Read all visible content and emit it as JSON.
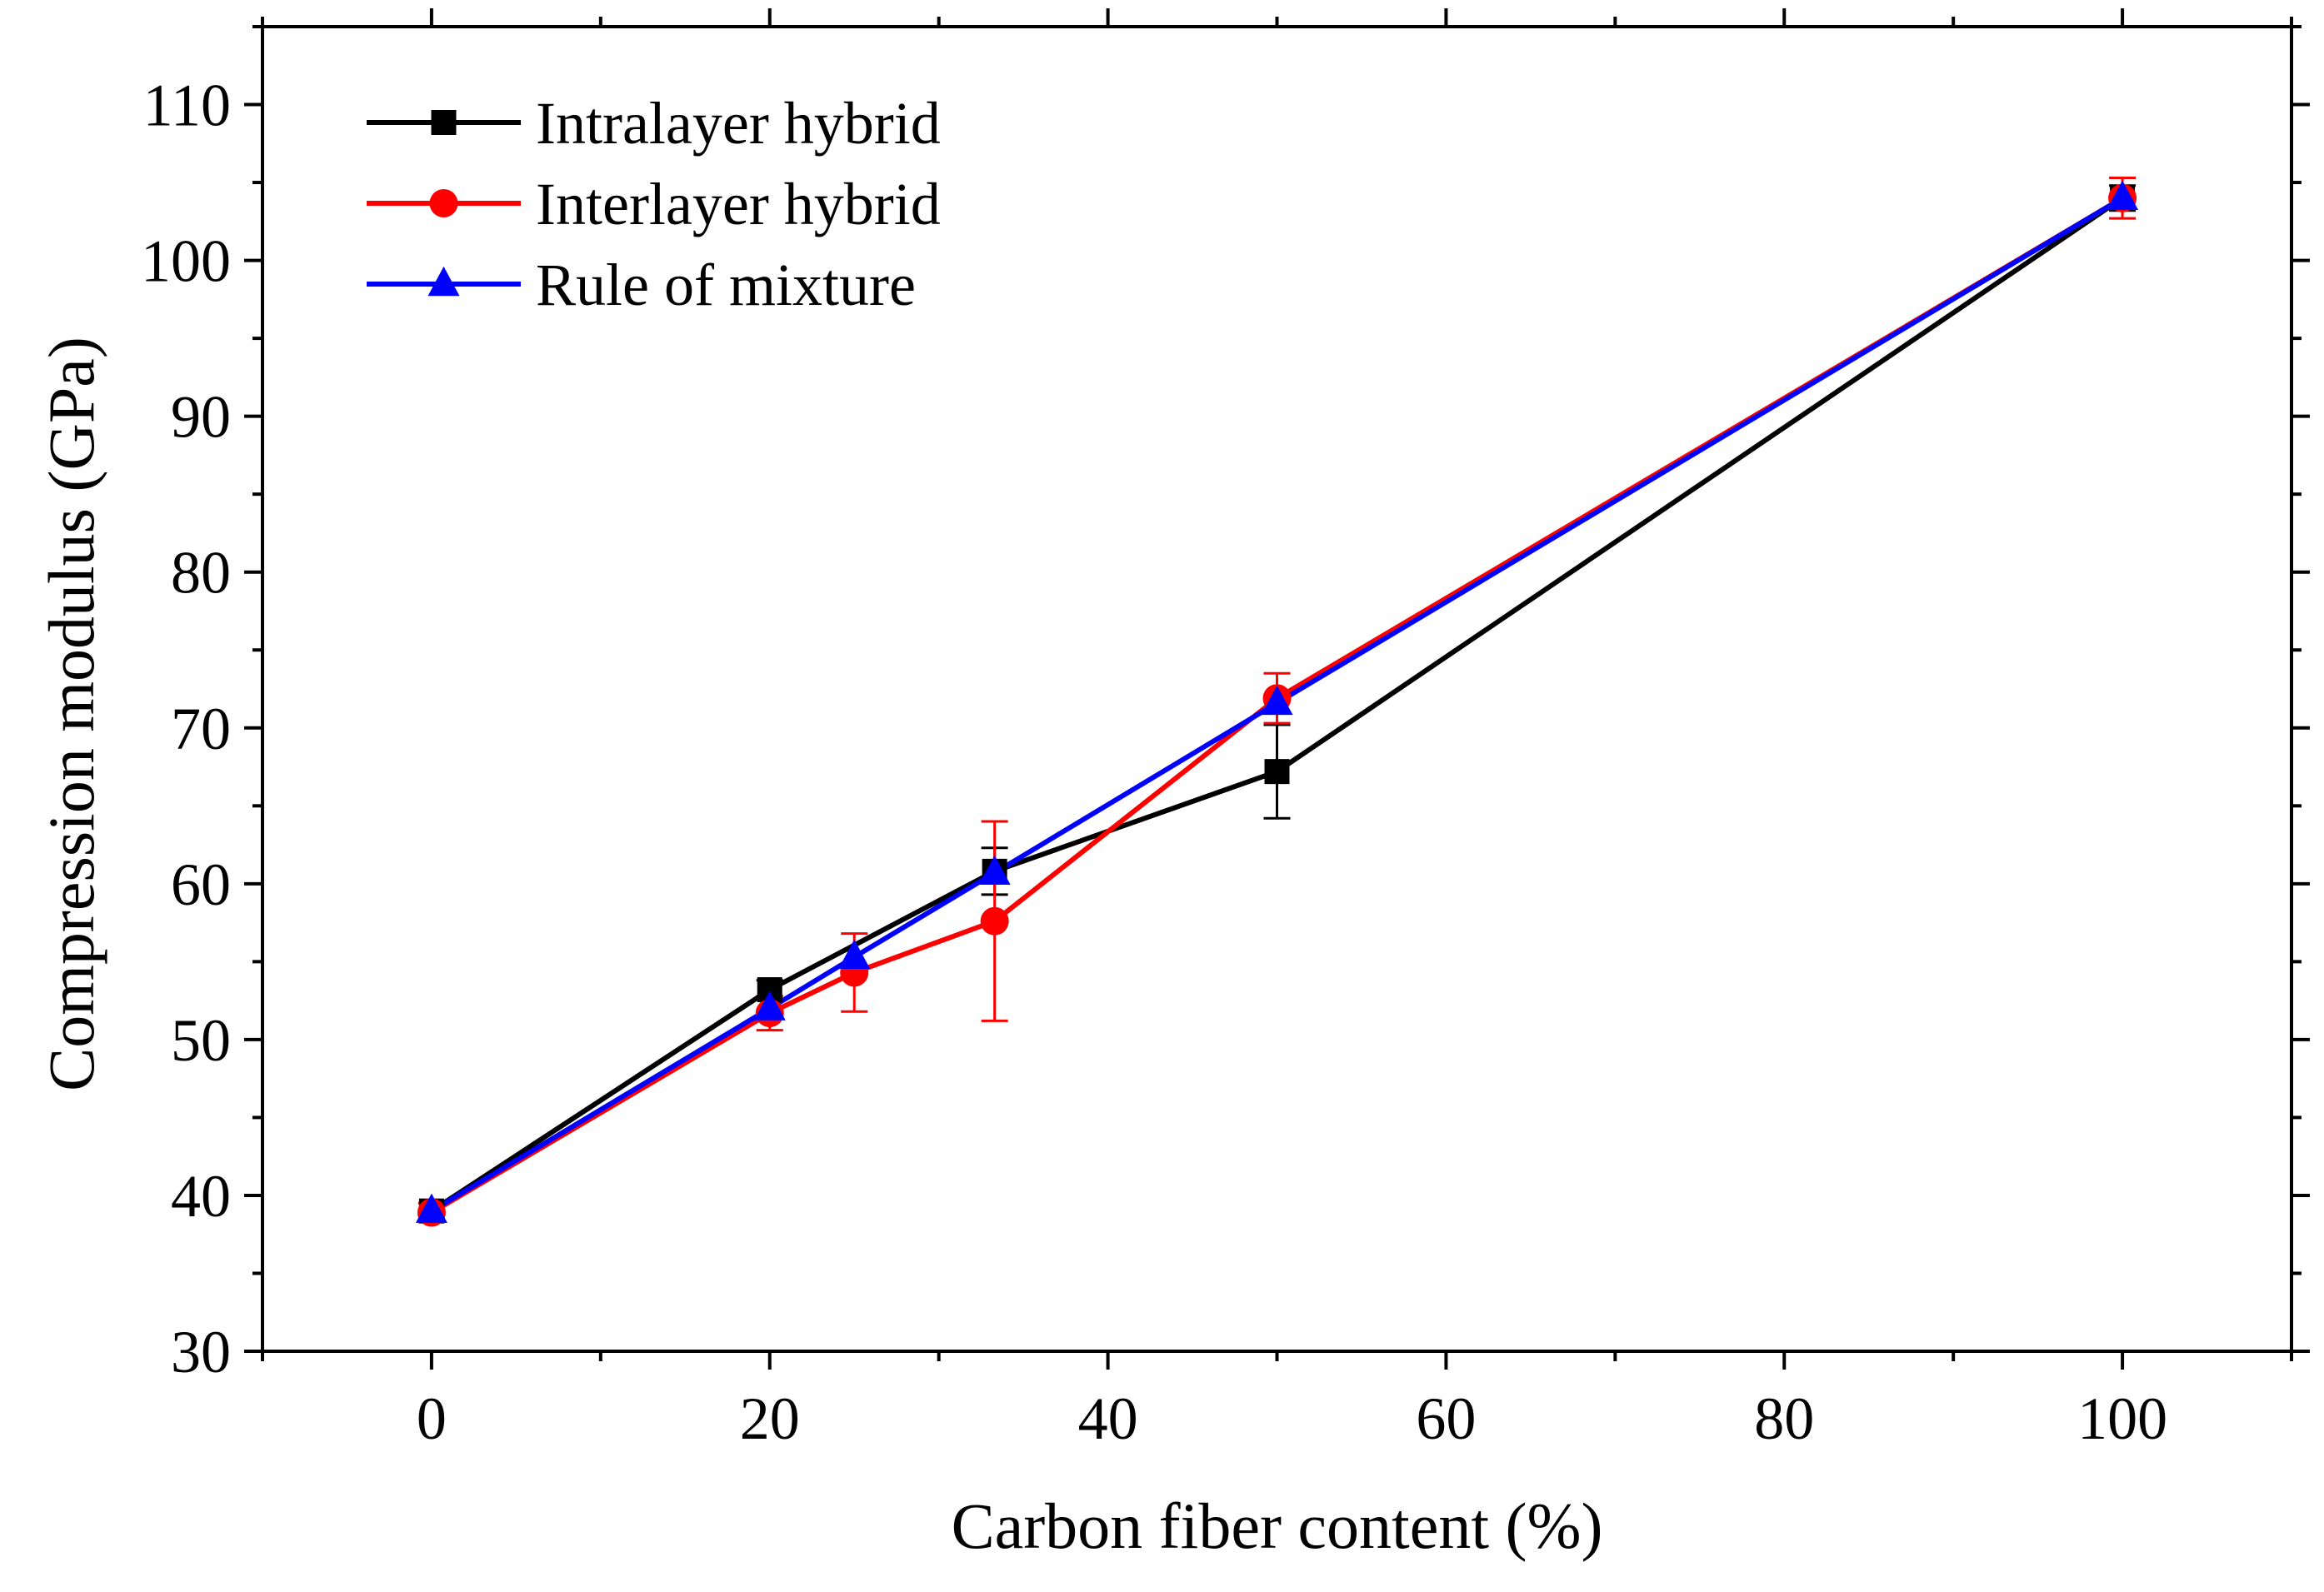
{
  "chart_data": {
    "type": "line",
    "title": "",
    "xlabel": "Carbon fiber content (%)",
    "ylabel": "Compression modulus (GPa)",
    "xlim": [
      -10,
      110
    ],
    "ylim": [
      30,
      115
    ],
    "x_ticks": [
      0,
      20,
      40,
      60,
      80,
      100
    ],
    "y_ticks": [
      30,
      40,
      50,
      60,
      70,
      80,
      90,
      100,
      110
    ],
    "x_tick_labels": [
      "0",
      "20",
      "40",
      "60",
      "80",
      "100"
    ],
    "y_tick_labels": [
      "30",
      "40",
      "50",
      "60",
      "70",
      "80",
      "90",
      "100",
      "110"
    ],
    "grid": false,
    "legend_position": "top-left",
    "series": [
      {
        "name": "Intralayer hybrid",
        "color": "#000000",
        "marker": "square",
        "x": [
          0,
          20,
          33.3,
          50,
          100
        ],
        "y": [
          39.0,
          53.2,
          60.8,
          67.2,
          104.0
        ],
        "err": [
          0.5,
          0.6,
          1.5,
          3.0,
          0.8
        ]
      },
      {
        "name": "Interlayer hybrid",
        "color": "#ff0000",
        "marker": "circle",
        "x": [
          0,
          20,
          25,
          33.3,
          50,
          100
        ],
        "y": [
          38.9,
          51.7,
          54.3,
          57.6,
          71.9,
          104.0
        ],
        "err": [
          0.6,
          1.1,
          2.5,
          6.4,
          1.6,
          1.3
        ]
      },
      {
        "name": "Rule of mixture",
        "color": "#0000ff",
        "marker": "triangle",
        "x": [
          0,
          20,
          25,
          33.3,
          50,
          100
        ],
        "y": [
          39.0,
          52.0,
          55.3,
          60.7,
          71.6,
          104.0
        ],
        "err": []
      }
    ]
  }
}
